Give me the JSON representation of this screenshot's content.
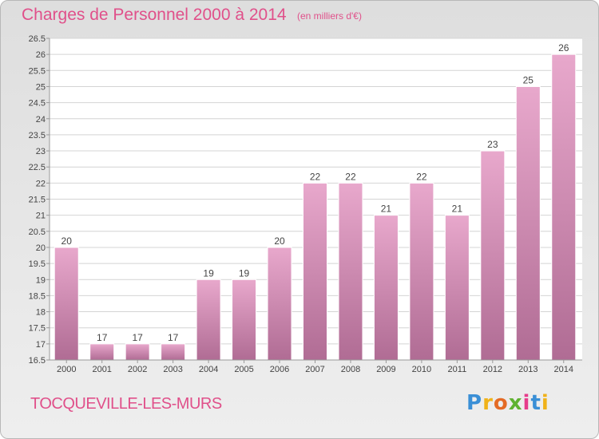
{
  "title": "Charges de Personnel 2000 à 2014",
  "subtitle": "(en milliers d'€)",
  "town": "TOCQUEVILLE-LES-MURS",
  "logo": {
    "letters": [
      "P",
      "r",
      "o",
      "x",
      "i",
      "t",
      "i"
    ],
    "colors": [
      "#3a8fd6",
      "#f0b21a",
      "#e46b25",
      "#5fb231",
      "#e63c8b",
      "#3a8fd6",
      "#f0b21a"
    ]
  },
  "colors": {
    "bar_top": "#e8a8cc",
    "bar_bottom": "#b06c94",
    "accent": "#e0508a"
  },
  "chart_data": {
    "type": "bar",
    "title": "Charges de Personnel 2000 à 2014",
    "categories": [
      "2000",
      "2001",
      "2002",
      "2003",
      "2004",
      "2005",
      "2006",
      "2007",
      "2008",
      "2009",
      "2010",
      "2011",
      "2012",
      "2013",
      "2014"
    ],
    "values": [
      20,
      17,
      17,
      17,
      19,
      19,
      20,
      22,
      22,
      21,
      22,
      21,
      23,
      25,
      26
    ],
    "value_labels": [
      "20",
      "17",
      "17",
      "17",
      "19",
      "19",
      "20",
      "22",
      "22",
      "21",
      "22",
      "21",
      "23",
      "25",
      "26"
    ],
    "ylim": [
      16.5,
      26.5
    ],
    "yticks": [
      "16.5",
      "17",
      "17.5",
      "18",
      "18.5",
      "19",
      "19.5",
      "20",
      "20.5",
      "21",
      "21.5",
      "22",
      "22.5",
      "23",
      "23.5",
      "24",
      "24.5",
      "25",
      "25.5",
      "26",
      "26.5"
    ],
    "grid": true
  }
}
